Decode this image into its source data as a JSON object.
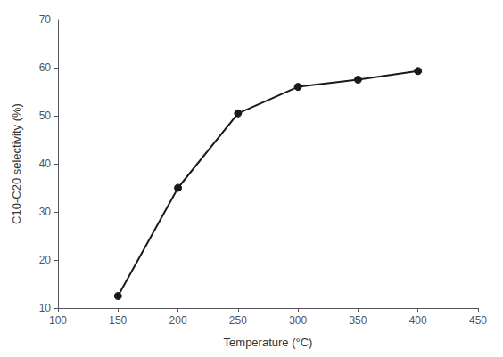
{
  "chart_data": {
    "type": "line",
    "x": [
      150,
      200,
      250,
      300,
      350,
      400
    ],
    "values": [
      12.5,
      35.0,
      50.5,
      56.0,
      57.5,
      59.3
    ],
    "xlabel": "Temperature (°C)",
    "ylabel": "C10-C20 selectivity (%)",
    "xlim": [
      100,
      450
    ],
    "ylim": [
      10,
      70
    ],
    "xticks": [
      100,
      150,
      200,
      250,
      300,
      350,
      400,
      450
    ],
    "yticks": [
      10,
      20,
      30,
      40,
      50,
      60,
      70
    ],
    "color": "#1a1a1a",
    "marker": "circle",
    "grid": false
  }
}
